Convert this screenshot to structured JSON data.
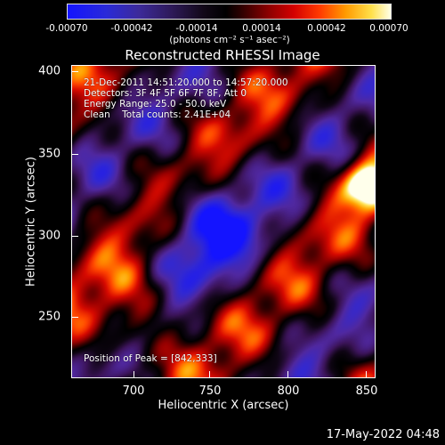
{
  "colorbar": {
    "ticks": [
      "-0.00070",
      "-0.00042",
      "-0.00014",
      "0.00014",
      "0.00042",
      "0.00070"
    ],
    "units": "(photons cm⁻² s⁻¹ asec⁻²)"
  },
  "plot": {
    "title": "Reconstructed RHESSI Image",
    "info_lines": [
      "21-Dec-2011 14:51:20.000 to 14:57:20.000",
      "Detectors: 3F 4F 5F 6F 7F 8F, Att 0",
      "Energy Range: 25.0 - 50.0 keV",
      "Clean    Total counts: 2.41E+04"
    ],
    "peak_label": "Position of Peak = [842,333]",
    "x_axis": {
      "title": "Heliocentric X (arcsec)",
      "ticks": [
        "700",
        "750",
        "800",
        "850"
      ]
    },
    "y_axis": {
      "title": "Heliocentric Y (arcsec)",
      "ticks": [
        "400",
        "350",
        "300",
        "250"
      ]
    }
  },
  "timestamp": "17-May-2022 04:48",
  "colors": {
    "background": "#000000",
    "positive_peak": "#ffffe8",
    "negative_peak": "#1414ff"
  }
}
